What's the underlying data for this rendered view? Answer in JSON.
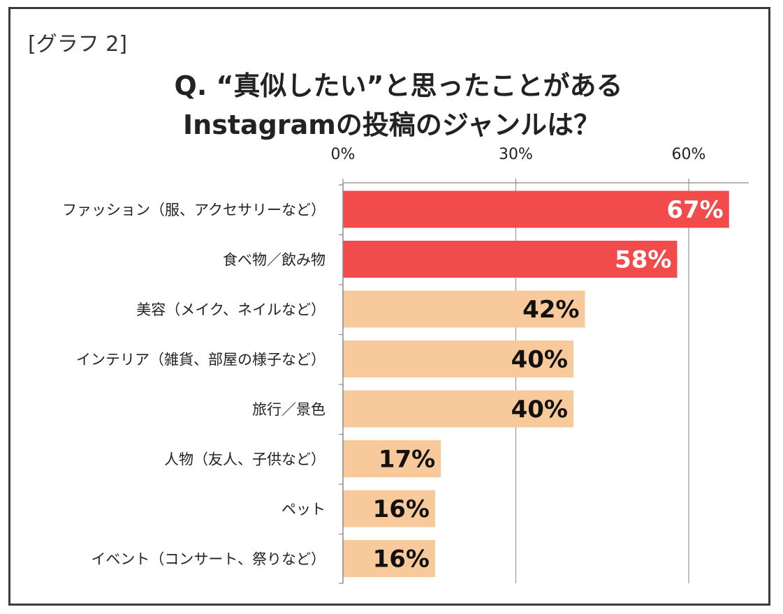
{
  "figure": {
    "tag": "[グラフ 2]",
    "title_line1": "Q. “真似したい”と思ったことがある",
    "title_line2": "Instagramの投稿のジャンルは？"
  },
  "colors": {
    "highlight": "#f24b4b",
    "normal": "#f8c99b",
    "highlight_text": "#ffffff",
    "normal_text": "#111111"
  },
  "chart_data": {
    "type": "bar",
    "orientation": "horizontal",
    "title": "Q. “真似したい”と思ったことがある Instagramの投稿のジャンルは？",
    "categories": [
      "ファッション（服、アクセサリーなど）",
      "食べ物／飲み物",
      "美容（メイク、ネイルなど）",
      "インテリア（雑貨、部屋の様子など）",
      "旅行／景色",
      "人物（友人、子供など）",
      "ペット",
      "イベント（コンサート、祭りなど）"
    ],
    "values": [
      67,
      58,
      42,
      40,
      40,
      17,
      16,
      16
    ],
    "value_labels": [
      "67%",
      "58%",
      "42%",
      "40%",
      "40%",
      "17%",
      "16%",
      "16%"
    ],
    "highlighted": [
      true,
      true,
      false,
      false,
      false,
      false,
      false,
      false
    ],
    "xlim": [
      0,
      70
    ],
    "xticks": [
      0,
      30,
      60
    ],
    "xtick_labels": [
      "0%",
      "30%",
      "60%"
    ],
    "xaxis_position": "top",
    "grid": true,
    "xlabel": "",
    "ylabel": ""
  }
}
